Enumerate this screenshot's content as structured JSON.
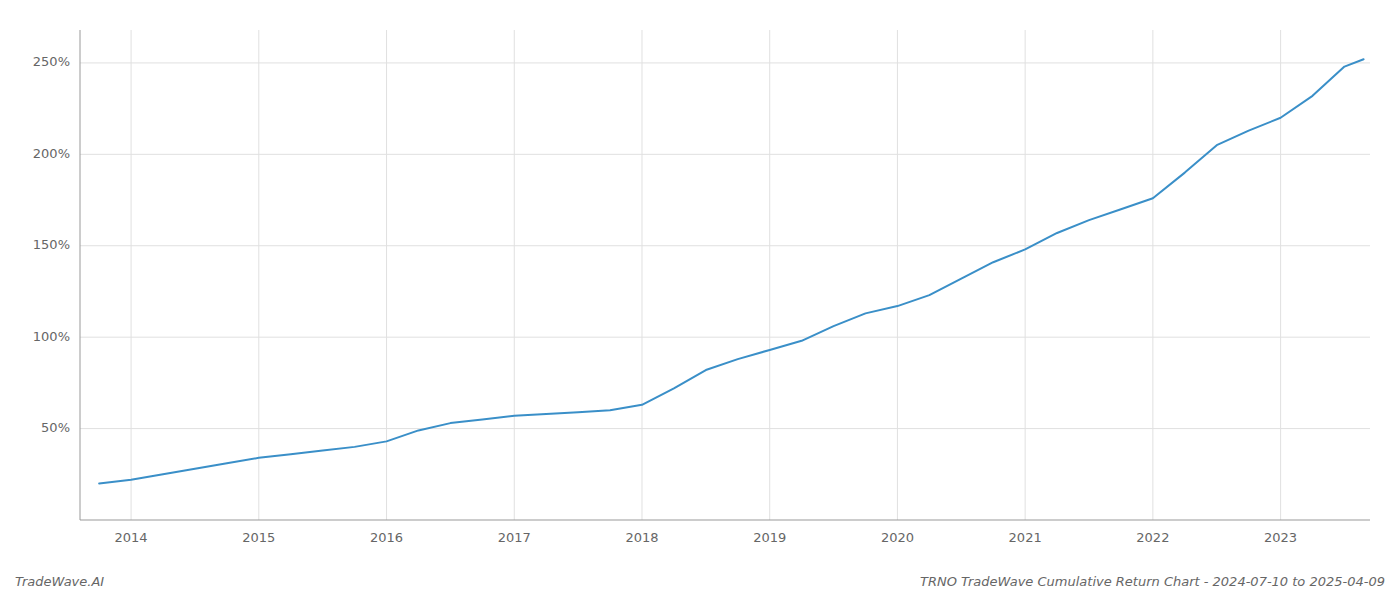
{
  "chart_data": {
    "type": "line",
    "title": "TRNO TradeWave Cumulative Return Chart - 2024-07-10 to 2025-04-09",
    "annotations": [
      "TradeWave.AI"
    ],
    "color": "#3a8fc8",
    "grid": true,
    "x": [
      2013.75,
      2014.0,
      2014.25,
      2014.5,
      2014.75,
      2015.0,
      2015.25,
      2015.5,
      2015.75,
      2016.0,
      2016.25,
      2016.5,
      2016.75,
      2017.0,
      2017.25,
      2017.5,
      2017.75,
      2018.0,
      2018.25,
      2018.5,
      2018.75,
      2019.0,
      2019.25,
      2019.5,
      2019.75,
      2020.0,
      2020.25,
      2020.5,
      2020.75,
      2021.0,
      2021.25,
      2021.5,
      2021.75,
      2022.0,
      2022.25,
      2022.5,
      2022.75,
      2023.0,
      2023.25,
      2023.5,
      2023.65
    ],
    "values": [
      20,
      22,
      25,
      28,
      31,
      34,
      36,
      38,
      40,
      43,
      49,
      53,
      55,
      57,
      58,
      59,
      60,
      63,
      72,
      82,
      88,
      93,
      98,
      106,
      113,
      117,
      123,
      132,
      141,
      148,
      157,
      164,
      170,
      176,
      190,
      205,
      213,
      220,
      232,
      248,
      252
    ],
    "xlim": [
      2013.6,
      2023.7
    ],
    "ylim": [
      0,
      268
    ],
    "xticks": [
      2014,
      2015,
      2016,
      2017,
      2018,
      2019,
      2020,
      2021,
      2022,
      2023
    ],
    "yticks": [
      {
        "value": 50,
        "label": "50%"
      },
      {
        "value": 100,
        "label": "100%"
      },
      {
        "value": 150,
        "label": "150%"
      },
      {
        "value": 200,
        "label": "200%"
      },
      {
        "value": 250,
        "label": "250%"
      }
    ]
  }
}
